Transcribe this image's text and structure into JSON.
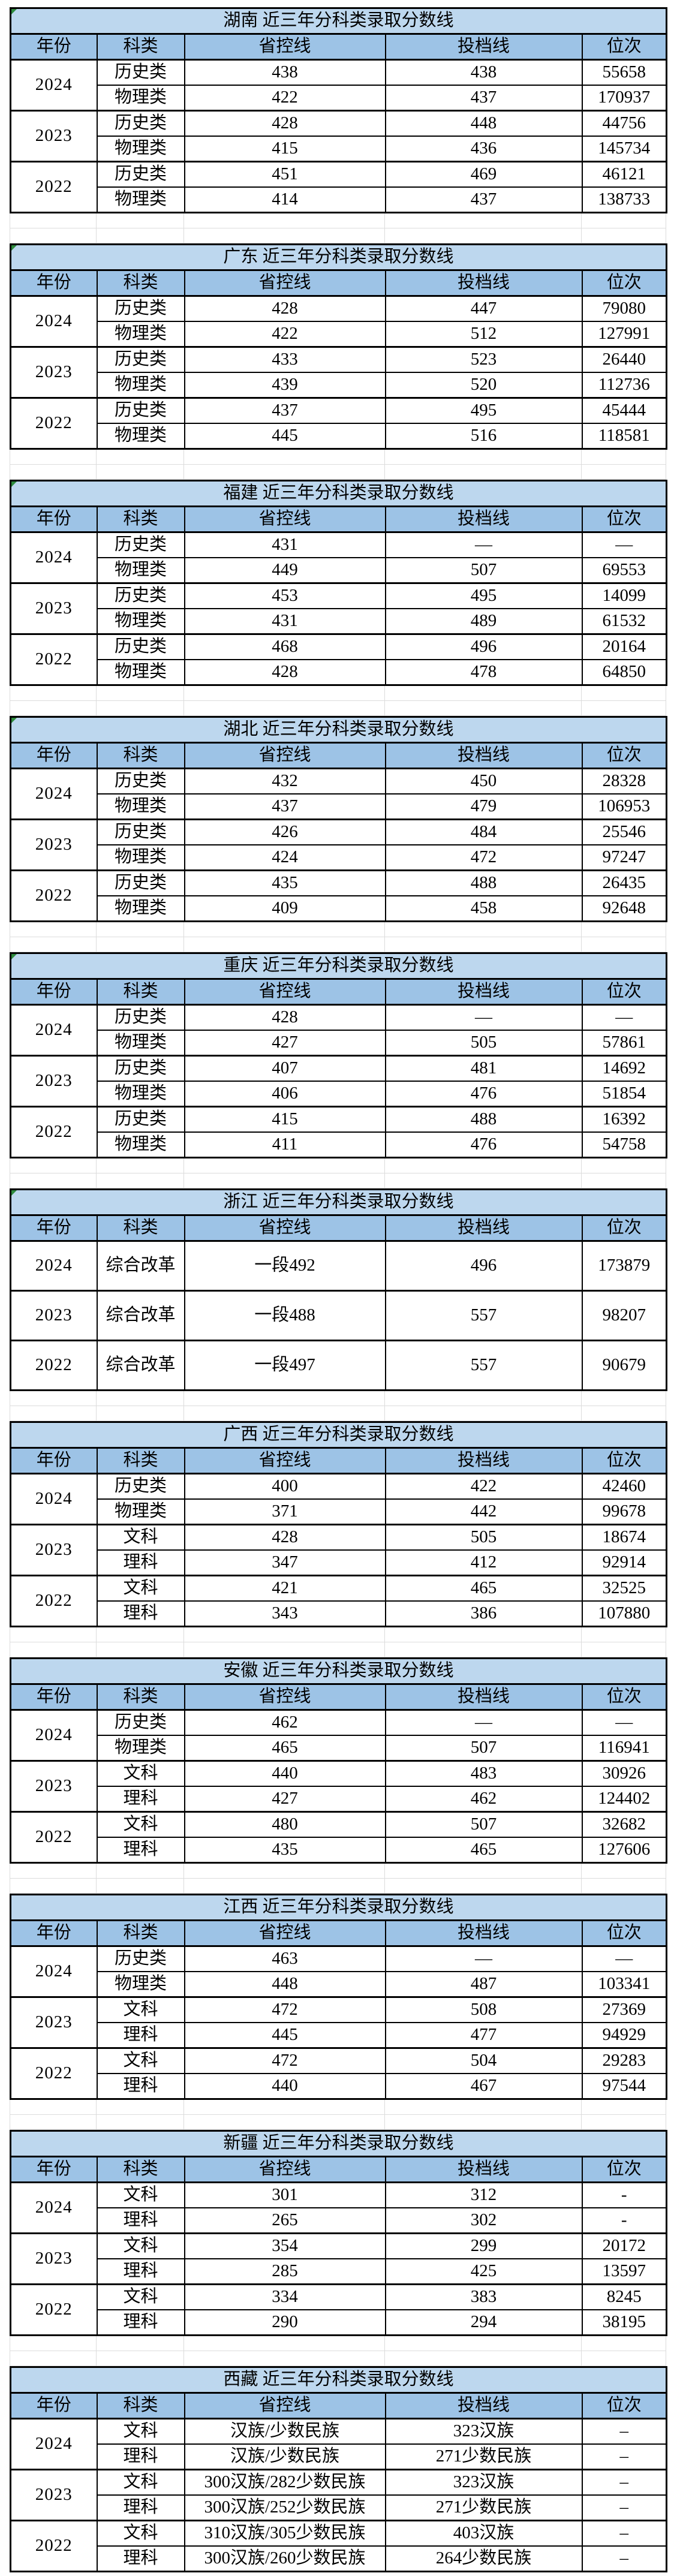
{
  "columns": [
    "年份",
    "科类",
    "省控线",
    "投档线",
    "位次"
  ],
  "colors": {
    "title_bg": "#BDD7EE",
    "header_bg": "#9DC3E6",
    "gridline": "#DCDCDC",
    "corner_mark_green": "#2E8B3D",
    "border": "#000000"
  },
  "tables": [
    {
      "title": "湖南 近三年分科类录取分数线",
      "corner_mark": true,
      "groups": [
        {
          "year": "2024",
          "rows": [
            [
              "历史类",
              "438",
              "438",
              "55658"
            ],
            [
              "物理类",
              "422",
              "437",
              "170937"
            ]
          ]
        },
        {
          "year": "2023",
          "rows": [
            [
              "历史类",
              "428",
              "448",
              "44756"
            ],
            [
              "物理类",
              "415",
              "436",
              "145734"
            ]
          ]
        },
        {
          "year": "2022",
          "rows": [
            [
              "历史类",
              "451",
              "469",
              "46121"
            ],
            [
              "物理类",
              "414",
              "437",
              "138733"
            ]
          ]
        }
      ]
    },
    {
      "title": "广东 近三年分科类录取分数线",
      "corner_mark": true,
      "groups": [
        {
          "year": "2024",
          "rows": [
            [
              "历史类",
              "428",
              "447",
              "79080"
            ],
            [
              "物理类",
              "422",
              "512",
              "127991"
            ]
          ]
        },
        {
          "year": "2023",
          "rows": [
            [
              "历史类",
              "433",
              "523",
              "26440"
            ],
            [
              "物理类",
              "439",
              "520",
              "112736"
            ]
          ]
        },
        {
          "year": "2022",
          "rows": [
            [
              "历史类",
              "437",
              "495",
              "45444"
            ],
            [
              "物理类",
              "445",
              "516",
              "118581"
            ]
          ]
        }
      ]
    },
    {
      "title": "福建 近三年分科类录取分数线",
      "corner_mark": true,
      "groups": [
        {
          "year": "2024",
          "rows": [
            [
              "历史类",
              "431",
              "—",
              "—"
            ],
            [
              "物理类",
              "449",
              "507",
              "69553"
            ]
          ]
        },
        {
          "year": "2023",
          "rows": [
            [
              "历史类",
              "453",
              "495",
              "14099"
            ],
            [
              "物理类",
              "431",
              "489",
              "61532"
            ]
          ]
        },
        {
          "year": "2022",
          "rows": [
            [
              "历史类",
              "468",
              "496",
              "20164"
            ],
            [
              "物理类",
              "428",
              "478",
              "64850"
            ]
          ]
        }
      ]
    },
    {
      "title": "湖北 近三年分科类录取分数线",
      "corner_mark": true,
      "groups": [
        {
          "year": "2024",
          "rows": [
            [
              "历史类",
              "432",
              "450",
              "28328"
            ],
            [
              "物理类",
              "437",
              "479",
              "106953"
            ]
          ]
        },
        {
          "year": "2023",
          "rows": [
            [
              "历史类",
              "426",
              "484",
              "25546"
            ],
            [
              "物理类",
              "424",
              "472",
              "97247"
            ]
          ]
        },
        {
          "year": "2022",
          "rows": [
            [
              "历史类",
              "435",
              "488",
              "26435"
            ],
            [
              "物理类",
              "409",
              "458",
              "92648"
            ]
          ]
        }
      ]
    },
    {
      "title": "重庆 近三年分科类录取分数线",
      "corner_mark": true,
      "groups": [
        {
          "year": "2024",
          "rows": [
            [
              "历史类",
              "428",
              "—",
              "—"
            ],
            [
              "物理类",
              "427",
              "505",
              "57861"
            ]
          ]
        },
        {
          "year": "2023",
          "rows": [
            [
              "历史类",
              "407",
              "481",
              "14692"
            ],
            [
              "物理类",
              "406",
              "476",
              "51854"
            ]
          ]
        },
        {
          "year": "2022",
          "rows": [
            [
              "历史类",
              "415",
              "488",
              "16392"
            ],
            [
              "物理类",
              "411",
              "476",
              "54758"
            ]
          ]
        }
      ]
    },
    {
      "title": "浙江 近三年分科类录取分数线",
      "corner_mark": true,
      "groups": [
        {
          "year": "2024",
          "rows": [
            [
              "综合改革",
              "一段492",
              "496",
              "173879"
            ]
          ]
        },
        {
          "year": "2023",
          "rows": [
            [
              "综合改革",
              "一段488",
              "557",
              "98207"
            ]
          ]
        },
        {
          "year": "2022",
          "rows": [
            [
              "综合改革",
              "一段497",
              "557",
              "90679"
            ]
          ]
        }
      ]
    },
    {
      "title": "广西 近三年分科类录取分数线",
      "corner_mark": false,
      "groups": [
        {
          "year": "2024",
          "rows": [
            [
              "历史类",
              "400",
              "422",
              "42460"
            ],
            [
              "物理类",
              "371",
              "442",
              "99678"
            ]
          ]
        },
        {
          "year": "2023",
          "rows": [
            [
              "文科",
              "428",
              "505",
              "18674"
            ],
            [
              "理科",
              "347",
              "412",
              "92914"
            ]
          ]
        },
        {
          "year": "2022",
          "rows": [
            [
              "文科",
              "421",
              "465",
              "32525"
            ],
            [
              "理科",
              "343",
              "386",
              "107880"
            ]
          ]
        }
      ]
    },
    {
      "title": "安徽 近三年分科类录取分数线",
      "corner_mark": false,
      "groups": [
        {
          "year": "2024",
          "rows": [
            [
              "历史类",
              "462",
              "—",
              "—"
            ],
            [
              "物理类",
              "465",
              "507",
              "116941"
            ]
          ]
        },
        {
          "year": "2023",
          "rows": [
            [
              "文科",
              "440",
              "483",
              "30926"
            ],
            [
              "理科",
              "427",
              "462",
              "124402"
            ]
          ]
        },
        {
          "year": "2022",
          "rows": [
            [
              "文科",
              "480",
              "507",
              "32682"
            ],
            [
              "理科",
              "435",
              "465",
              "127606"
            ]
          ]
        }
      ]
    },
    {
      "title": "江西 近三年分科类录取分数线",
      "corner_mark": false,
      "groups": [
        {
          "year": "2024",
          "rows": [
            [
              "历史类",
              "463",
              "—",
              "—"
            ],
            [
              "物理类",
              "448",
              "487",
              "103341"
            ]
          ]
        },
        {
          "year": "2023",
          "rows": [
            [
              "文科",
              "472",
              "508",
              "27369"
            ],
            [
              "理科",
              "445",
              "477",
              "94929"
            ]
          ]
        },
        {
          "year": "2022",
          "rows": [
            [
              "文科",
              "472",
              "504",
              "29283"
            ],
            [
              "理科",
              "440",
              "467",
              "97544"
            ]
          ]
        }
      ]
    },
    {
      "title": "新疆 近三年分科类录取分数线",
      "corner_mark": false,
      "groups": [
        {
          "year": "2024",
          "rows": [
            [
              "文科",
              "301",
              "312",
              "-"
            ],
            [
              "理科",
              "265",
              "302",
              "-"
            ]
          ]
        },
        {
          "year": "2023",
          "rows": [
            [
              "文科",
              "354",
              "299",
              "20172"
            ],
            [
              "理科",
              "285",
              "425",
              "13597"
            ]
          ]
        },
        {
          "year": "2022",
          "rows": [
            [
              "文科",
              "334",
              "383",
              "8245"
            ],
            [
              "理科",
              "290",
              "294",
              "38195"
            ]
          ]
        }
      ]
    },
    {
      "title": "西藏 近三年分科类录取分数线",
      "corner_mark": false,
      "groups": [
        {
          "year": "2024",
          "rows": [
            [
              "文科",
              "汉族/少数民族",
              "323汉族",
              "–"
            ],
            [
              "理科",
              "汉族/少数民族",
              "271少数民族",
              "–"
            ]
          ]
        },
        {
          "year": "2023",
          "rows": [
            [
              "文科",
              "300汉族/282少数民族",
              "323汉族",
              "–"
            ],
            [
              "理科",
              "300汉族/252少数民族",
              "271少数民族",
              "–"
            ]
          ]
        },
        {
          "year": "2022",
          "rows": [
            [
              "文科",
              "310汉族/305少数民族",
              "403汉族",
              "–"
            ],
            [
              "理科",
              "300汉族/260少数民族",
              "264少数民族",
              "–"
            ]
          ]
        }
      ]
    }
  ]
}
